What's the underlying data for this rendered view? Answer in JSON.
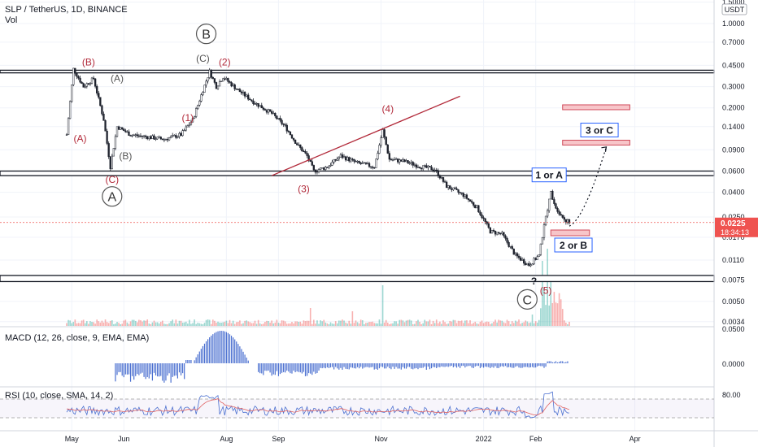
{
  "header": {
    "symbol_line": "SLP / TetherUS, 1D, BINANCE",
    "vol_label": "Vol",
    "currency": "USDT"
  },
  "colors": {
    "up": "#26a69a",
    "down": "#ef5350",
    "candle": "#1e222d",
    "wave_red": "#b22a3a",
    "wave_gray": "#555555",
    "macd_hist": "#4a6fd0",
    "rsi_line": "#4a6fd0",
    "rsi_signal": "#e06060",
    "zone_fill": "#f7c5c9",
    "zone_border": "#d04a5a"
  },
  "chart_data": {
    "type": "candlestick",
    "price_axis": {
      "scale": "log",
      "ticks": [
        "1.5000",
        "1.0000",
        "0.7000",
        "0.4500",
        "0.3000",
        "0.2000",
        "0.1400",
        "0.0900",
        "0.0600",
        "0.0400",
        "0.0250",
        "0.0170",
        "0.0110",
        "0.0075",
        "0.0050",
        "0.0034"
      ],
      "last_price": "0.0225",
      "countdown": "18:34:13"
    },
    "x_ticks": [
      "May",
      "Jun",
      "Aug",
      "Sep",
      "Nov",
      "2022",
      "Feb",
      "Apr"
    ],
    "price_path": [
      [
        "2021-04-28",
        0.12
      ],
      [
        "2021-05-02",
        0.42
      ],
      [
        "2021-05-08",
        0.3
      ],
      [
        "2021-05-14",
        0.35
      ],
      [
        "2021-05-20",
        0.16
      ],
      [
        "2021-05-24",
        0.065
      ],
      [
        "2021-05-28",
        0.14
      ],
      [
        "2021-06-05",
        0.12
      ],
      [
        "2021-06-15",
        0.115
      ],
      [
        "2021-06-25",
        0.11
      ],
      [
        "2021-07-05",
        0.12
      ],
      [
        "2021-07-12",
        0.16
      ],
      [
        "2021-07-18",
        0.28
      ],
      [
        "2021-07-22",
        0.4
      ],
      [
        "2021-07-26",
        0.3
      ],
      [
        "2021-07-30",
        0.36
      ],
      [
        "2021-08-08",
        0.28
      ],
      [
        "2021-08-18",
        0.22
      ],
      [
        "2021-08-28",
        0.18
      ],
      [
        "2021-09-05",
        0.14
      ],
      [
        "2021-09-12",
        0.1
      ],
      [
        "2021-09-18",
        0.08
      ],
      [
        "2021-09-22",
        0.06
      ],
      [
        "2021-09-30",
        0.065
      ],
      [
        "2021-10-08",
        0.08
      ],
      [
        "2021-10-18",
        0.07
      ],
      [
        "2021-10-28",
        0.065
      ],
      [
        "2021-11-02",
        0.13
      ],
      [
        "2021-11-06",
        0.075
      ],
      [
        "2021-11-15",
        0.072
      ],
      [
        "2021-11-25",
        0.065
      ],
      [
        "2021-12-03",
        0.062
      ],
      [
        "2021-12-10",
        0.045
      ],
      [
        "2021-12-20",
        0.038
      ],
      [
        "2021-12-28",
        0.03
      ],
      [
        "2022-01-05",
        0.019
      ],
      [
        "2022-01-12",
        0.018
      ],
      [
        "2022-01-20",
        0.012
      ],
      [
        "2022-01-28",
        0.01
      ],
      [
        "2022-02-03",
        0.012
      ],
      [
        "2022-02-07",
        0.025
      ],
      [
        "2022-02-10",
        0.04
      ],
      [
        "2022-02-13",
        0.03
      ],
      [
        "2022-02-18",
        0.024
      ],
      [
        "2022-02-21",
        0.0225
      ]
    ],
    "horizontal_bands": [
      {
        "low": 0.39,
        "high": 0.41
      },
      {
        "low": 0.055,
        "high": 0.06
      },
      {
        "low": 0.0073,
        "high": 0.0082
      }
    ],
    "trendline": [
      [
        "2021-08-28",
        0.055
      ],
      [
        "2021-12-18",
        0.25
      ]
    ],
    "target_zones": [
      {
        "label": "3 or C",
        "low": 0.1,
        "high": 0.108,
        "from": "2022-02-17",
        "to": "2022-03-29"
      },
      {
        "label": "",
        "low": 0.195,
        "high": 0.212,
        "from": "2022-02-17",
        "to": "2022-03-29"
      },
      {
        "label": "2 or B",
        "low": 0.0175,
        "high": 0.0195,
        "from": "2022-02-10",
        "to": "2022-03-05"
      }
    ],
    "projection_path": [
      [
        "2022-02-21",
        0.021
      ],
      [
        "2022-03-15",
        0.095
      ]
    ],
    "wave_labels": [
      {
        "text": "(B)",
        "date": "2021-05-11",
        "price": 0.45,
        "style": "red"
      },
      {
        "text": "(A)",
        "date": "2021-05-28",
        "price": 0.33,
        "style": "gray"
      },
      {
        "text": "(A)",
        "date": "2021-05-06",
        "price": 0.105,
        "style": "red"
      },
      {
        "text": "(B)",
        "date": "2021-06-02",
        "price": 0.075,
        "style": "gray"
      },
      {
        "text": "(C)",
        "date": "2021-05-25",
        "price": 0.048,
        "style": "red"
      },
      {
        "text": "A",
        "date": "2021-05-25",
        "price": 0.037,
        "style": "circle"
      },
      {
        "text": "B",
        "date": "2021-07-20",
        "price": 0.82,
        "style": "circle"
      },
      {
        "text": "(C)",
        "date": "2021-07-18",
        "price": 0.48,
        "style": "gray"
      },
      {
        "text": "(2)",
        "date": "2021-07-31",
        "price": 0.45,
        "style": "red"
      },
      {
        "text": "(1)",
        "date": "2021-07-09",
        "price": 0.155,
        "style": "red"
      },
      {
        "text": "(3)",
        "date": "2021-09-16",
        "price": 0.04,
        "style": "red"
      },
      {
        "text": "(4)",
        "date": "2021-11-05",
        "price": 0.185,
        "style": "red"
      },
      {
        "text": "?",
        "date": "2022-01-31",
        "price": 0.0069,
        "style": "dark"
      },
      {
        "text": "C",
        "date": "2022-01-27",
        "price": 0.0052,
        "style": "circle"
      },
      {
        "text": "(5)",
        "date": "2022-02-07",
        "price": 0.0058,
        "style": "red"
      },
      {
        "text": "1 or A",
        "date": "2022-02-09",
        "price": 0.052,
        "style": "box"
      }
    ],
    "macd": {
      "title": "MACD (12, 26, close, 9, EMA, EMA)",
      "ticks": [
        "0.0500",
        "0.0000"
      ],
      "zero": 0,
      "ylim": [
        -0.02,
        0.05
      ]
    },
    "rsi": {
      "title": "RSI (10, close, SMA, 14, 2)",
      "ticks": [
        "80.00"
      ],
      "upper": 70,
      "lower": 30,
      "ylim": [
        15,
        90
      ]
    }
  }
}
